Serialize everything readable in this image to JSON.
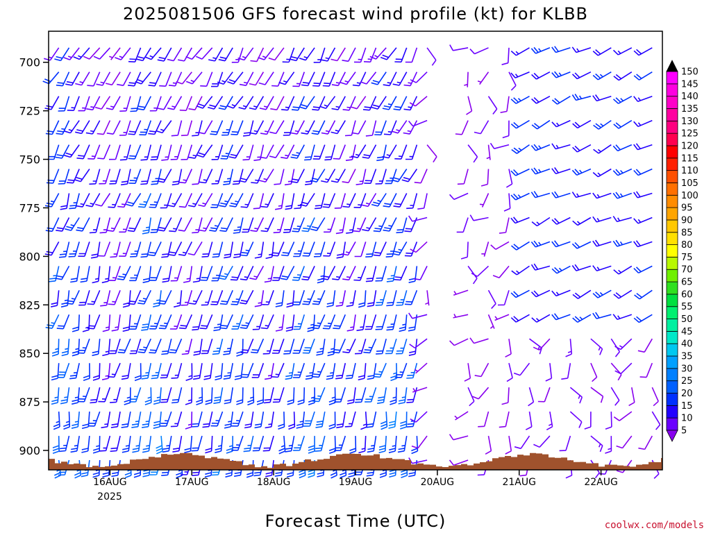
{
  "chart_data": {
    "type": "wind_barb_time_height",
    "title": "2025081506 GFS forecast wind profile (kt) for KLBB",
    "xlabel": "Forecast Time (UTC)",
    "ylabel": "",
    "y_axis": {
      "unit": "hPa",
      "direction": "pressure_decreasing_upward",
      "range": [
        910,
        684
      ],
      "ticks": [
        700,
        725,
        750,
        775,
        800,
        825,
        850,
        875,
        900
      ],
      "tick_labels": [
        "700",
        "725",
        "750",
        "775",
        "800",
        "825",
        "850",
        "875",
        "900"
      ]
    },
    "x_axis": {
      "range": [
        "2025-08-15T06:00",
        "2025-08-22T18:00"
      ],
      "ticks": [
        "2025-08-16T00:00",
        "2025-08-17T00:00",
        "2025-08-18T00:00",
        "2025-08-19T00:00",
        "2025-08-20T00:00",
        "2025-08-21T00:00",
        "2025-08-22T00:00"
      ],
      "tick_labels": [
        "16AUG",
        "17AUG",
        "18AUG",
        "19AUG",
        "20AUG",
        "21AUG",
        "22AUG"
      ],
      "year_label": "2025",
      "time_step_hours_before_20AUG": 3,
      "time_step_hours_after_20AUG": 6
    },
    "colorbar": {
      "unit": "kt",
      "levels": [
        5,
        10,
        15,
        20,
        25,
        30,
        35,
        40,
        45,
        50,
        55,
        60,
        65,
        70,
        75,
        80,
        85,
        90,
        95,
        100,
        105,
        110,
        115,
        120,
        125,
        130,
        135,
        140,
        145,
        150
      ],
      "level_labels": [
        "5",
        "10",
        "15",
        "20",
        "25",
        "30",
        "35",
        "40",
        "45",
        "50",
        "55",
        "60",
        "65",
        "70",
        "75",
        "80",
        "85",
        "90",
        "95",
        "100",
        "105",
        "110",
        "115",
        "120",
        "125",
        "130",
        "135",
        "140",
        "145",
        "150"
      ],
      "colors": [
        "#8800ee",
        "#6a00ff",
        "#2200ff",
        "#0030ff",
        "#0060ff",
        "#0080ff",
        "#00a0ff",
        "#00c8f0",
        "#00e8c8",
        "#00f0a0",
        "#00f070",
        "#00e040",
        "#30e020",
        "#70f000",
        "#b8f800",
        "#ffff00",
        "#ffe000",
        "#ffc800",
        "#ffa500",
        "#ff8c00",
        "#ff7000",
        "#ff5000",
        "#ff2000",
        "#ff0000",
        "#ff0050",
        "#ff0080",
        "#ff00a0",
        "#ff00c8",
        "#ff00e0",
        "#ff00ff"
      ],
      "extend": "both"
    },
    "terrain_color": "#a0522d",
    "regimes": [
      {
        "period": "15AUG-19AUG",
        "wind_from": "south to south-southwest",
        "speed_kt": [
          5,
          35
        ]
      },
      {
        "period": "20AUG",
        "wind_from": "variable / southeast",
        "speed_kt": [
          5,
          15
        ]
      },
      {
        "period": "21AUG-22AUG",
        "wind_from": "west-southwest aloft, variable near surface",
        "speed_kt": [
          5,
          30
        ]
      }
    ]
  },
  "credit": "coolwx.com/models"
}
